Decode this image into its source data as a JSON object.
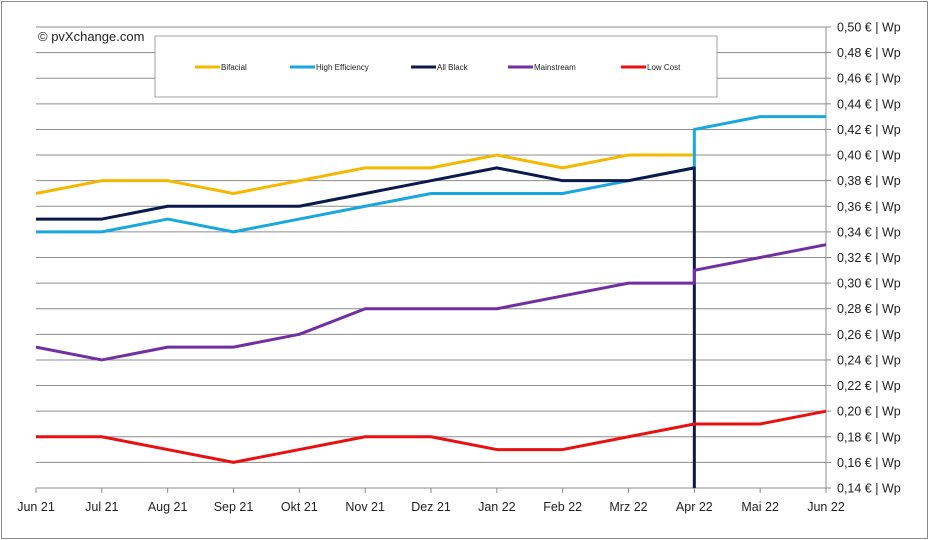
{
  "chart_data": {
    "type": "line",
    "copyright": "© pvXchange.com",
    "categories": [
      "Jun 21",
      "Jul 21",
      "Aug 21",
      "Sep 21",
      "Okt 21",
      "Nov 21",
      "Dez 21",
      "Jan 22",
      "Feb 22",
      "Mrz 22",
      "Apr 22",
      "Mai 22",
      "Jun 22"
    ],
    "ylim": [
      0.14,
      0.5
    ],
    "ystep": 0.02,
    "ytick_labels": [
      "0,14 € | Wp",
      "0,16 € | Wp",
      "0,18 € | Wp",
      "0,20 € | Wp",
      "0,22 € | Wp",
      "0,24 € | Wp",
      "0,26 € | Wp",
      "0,28 € | Wp",
      "0,30 € | Wp",
      "0,32 € | Wp",
      "0,34 € | Wp",
      "0,36 € | Wp",
      "0,38 € | Wp",
      "0,40 € | Wp",
      "0,42 € | Wp",
      "0,44 € | Wp",
      "0,46 € | Wp",
      "0,48 € | Wp",
      "0,50 € | Wp"
    ],
    "grid": true,
    "legend_position": "top",
    "series": [
      {
        "name": "Bifacial",
        "color": "#f5b800",
        "points": [
          [
            0,
            0.37
          ],
          [
            1,
            0.38
          ],
          [
            2,
            0.38
          ],
          [
            3,
            0.37
          ],
          [
            4,
            0.38
          ],
          [
            5,
            0.39
          ],
          [
            6,
            0.39
          ],
          [
            7,
            0.4
          ],
          [
            8,
            0.39
          ],
          [
            9,
            0.4
          ],
          [
            10,
            0.4
          ]
        ]
      },
      {
        "name": "High Efficiency",
        "color": "#1aa7e0",
        "points": [
          [
            0,
            0.34
          ],
          [
            1,
            0.34
          ],
          [
            2,
            0.35
          ],
          [
            3,
            0.34
          ],
          [
            4,
            0.35
          ],
          [
            5,
            0.36
          ],
          [
            6,
            0.37
          ],
          [
            7,
            0.37
          ],
          [
            8,
            0.37
          ],
          [
            9,
            0.38
          ],
          [
            10,
            0.39
          ],
          [
            10,
            0.42
          ],
          [
            11,
            0.43
          ],
          [
            12,
            0.43
          ]
        ]
      },
      {
        "name": "All Black",
        "color": "#0b1a4a",
        "points": [
          [
            0,
            0.35
          ],
          [
            1,
            0.35
          ],
          [
            2,
            0.36
          ],
          [
            3,
            0.36
          ],
          [
            4,
            0.36
          ],
          [
            5,
            0.37
          ],
          [
            6,
            0.38
          ],
          [
            7,
            0.39
          ],
          [
            8,
            0.38
          ],
          [
            9,
            0.38
          ],
          [
            10,
            0.39
          ],
          [
            10,
            0.14
          ]
        ]
      },
      {
        "name": "Mainstream",
        "color": "#7030a0",
        "points": [
          [
            0,
            0.25
          ],
          [
            1,
            0.24
          ],
          [
            2,
            0.25
          ],
          [
            3,
            0.25
          ],
          [
            4,
            0.26
          ],
          [
            5,
            0.28
          ],
          [
            6,
            0.28
          ],
          [
            7,
            0.28
          ],
          [
            8,
            0.29
          ],
          [
            9,
            0.3
          ],
          [
            10,
            0.3
          ],
          [
            10,
            0.31
          ],
          [
            11,
            0.32
          ],
          [
            12,
            0.33
          ]
        ]
      },
      {
        "name": "Low Cost",
        "color": "#e81010",
        "points": [
          [
            0,
            0.18
          ],
          [
            1,
            0.18
          ],
          [
            2,
            0.17
          ],
          [
            3,
            0.16
          ],
          [
            4,
            0.17
          ],
          [
            5,
            0.18
          ],
          [
            6,
            0.18
          ],
          [
            7,
            0.17
          ],
          [
            8,
            0.17
          ],
          [
            9,
            0.18
          ],
          [
            10,
            0.19
          ],
          [
            11,
            0.19
          ],
          [
            12,
            0.2
          ]
        ]
      }
    ]
  }
}
